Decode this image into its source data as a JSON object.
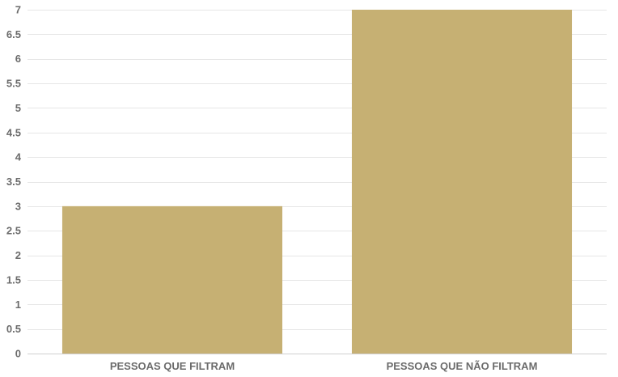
{
  "chart_data": {
    "type": "bar",
    "title": "",
    "xlabel": "",
    "ylabel": "",
    "categories": [
      "PESSOAS QUE FILTRAM",
      "PESSOAS QUE NÃO FILTRAM"
    ],
    "values": [
      3,
      7
    ],
    "ylim": [
      0,
      7
    ],
    "yticks": [
      0,
      0.5,
      1,
      1.5,
      2,
      2.5,
      3,
      3.5,
      4,
      4.5,
      5,
      5.5,
      6,
      6.5,
      7
    ],
    "ytick_labels": [
      "0",
      "0.5",
      "1",
      "1.5",
      "2",
      "2.5",
      "3",
      "3.5",
      "4",
      "4.5",
      "5",
      "5.5",
      "6",
      "6.5",
      "7"
    ],
    "grid": true,
    "bar_color": "#c6b073",
    "gridline_color": "#e6e6e6",
    "tick_label_color": "#6b6b6b"
  }
}
